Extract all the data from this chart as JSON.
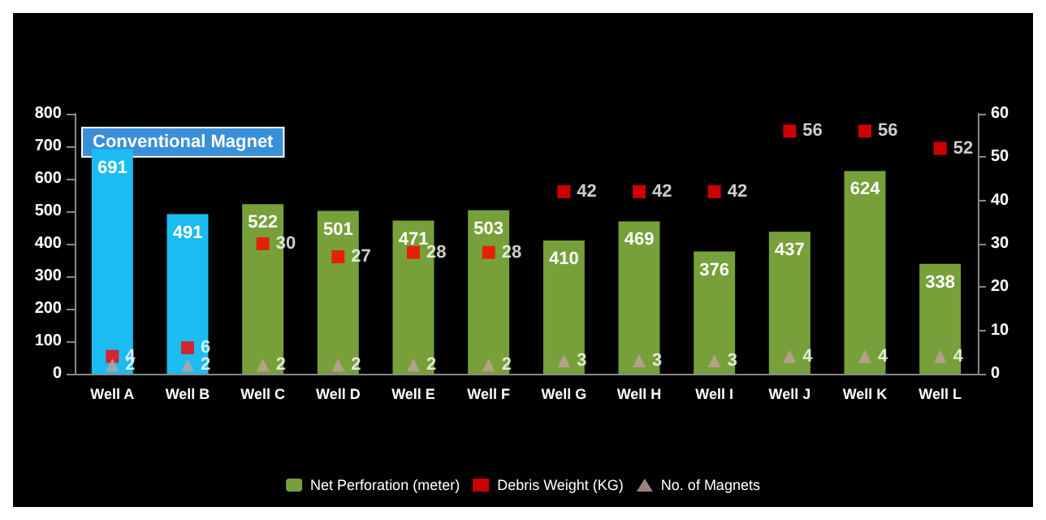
{
  "chart_data": {
    "type": "bar",
    "categories": [
      "Well A",
      "Well B",
      "Well C",
      "Well D",
      "Well E",
      "Well F",
      "Well G",
      "Well H",
      "Well I",
      "Well J",
      "Well K",
      "Well L"
    ],
    "series": [
      {
        "name": "Net Perforation (meter)",
        "color": "#77a03a",
        "colors": [
          "#1cbcf2",
          "#1cbcf2",
          "#77a03a",
          "#77a03a",
          "#77a03a",
          "#77a03a",
          "#77a03a",
          "#77a03a",
          "#77a03a",
          "#77a03a",
          "#77a03a",
          "#77a03a"
        ],
        "values": [
          691,
          491,
          522,
          501,
          471,
          503,
          410,
          469,
          376,
          437,
          624,
          338
        ]
      },
      {
        "name": "Debris Weight (KG)",
        "type": "scatter",
        "axis": "y2",
        "marker": "square",
        "color": "#ff0000",
        "values": [
          4,
          6,
          30,
          27,
          28,
          28,
          42,
          42,
          42,
          56,
          56,
          52
        ]
      },
      {
        "name": "No. of Magnets",
        "type": "scatter",
        "axis": "y2",
        "marker": "triangle",
        "color": "#c4a0a0",
        "values": [
          2,
          2,
          2,
          2,
          2,
          2,
          3,
          3,
          3,
          4,
          4,
          4
        ]
      }
    ],
    "ylim": [
      0,
      800
    ],
    "yticks": [
      0,
      100,
      200,
      300,
      400,
      500,
      600,
      700,
      800
    ],
    "y2lim": [
      0,
      60
    ],
    "y2ticks": [
      0,
      10,
      20,
      30,
      40,
      50,
      60
    ],
    "annotations": [
      "Conventional Magnet"
    ],
    "data_labels": true,
    "legend": "bottom"
  }
}
